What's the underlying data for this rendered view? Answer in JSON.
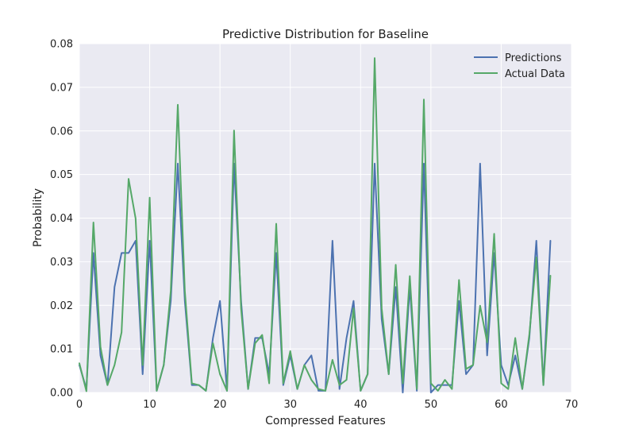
{
  "chart_data": {
    "type": "line",
    "title": "Predictive Distribution for Baseline",
    "xlabel": "Compressed Features",
    "ylabel": "Probability",
    "xlim": [
      0,
      70
    ],
    "ylim": [
      0,
      0.08
    ],
    "xticks": [
      "0",
      "10",
      "20",
      "30",
      "40",
      "50",
      "60",
      "70"
    ],
    "yticks": [
      "0.00",
      "0.01",
      "0.02",
      "0.03",
      "0.04",
      "0.05",
      "0.06",
      "0.07",
      "0.08"
    ],
    "grid": true,
    "legend_position": "top-right",
    "x": [
      0,
      1,
      2,
      3,
      4,
      5,
      6,
      7,
      8,
      9,
      10,
      11,
      12,
      13,
      14,
      15,
      16,
      17,
      18,
      19,
      20,
      21,
      22,
      23,
      24,
      25,
      26,
      27,
      28,
      29,
      30,
      31,
      32,
      33,
      34,
      35,
      36,
      37,
      38,
      39,
      40,
      41,
      42,
      43,
      44,
      45,
      46,
      47,
      48,
      49,
      50,
      51,
      52,
      53,
      54,
      55,
      56,
      57,
      58,
      59,
      60,
      61,
      62,
      63,
      64,
      65,
      66,
      67
    ],
    "series": [
      {
        "name": "Predictions",
        "color": "#4c72b0",
        "values": [
          0.0063,
          0.0008,
          0.032,
          0.0085,
          0.0017,
          0.0242,
          0.032,
          0.032,
          0.0348,
          0.0042,
          0.0348,
          0.0004,
          0.0063,
          0.021,
          0.0525,
          0.021,
          0.0017,
          0.0017,
          0.0004,
          0.0125,
          0.021,
          0.0004,
          0.0525,
          0.021,
          0.0008,
          0.0125,
          0.0125,
          0.0042,
          0.032,
          0.0017,
          0.0085,
          0.0008,
          0.0063,
          0.0085,
          0.0004,
          0.0004,
          0.0348,
          0.0008,
          0.0125,
          0.021,
          0.0004,
          0.0042,
          0.0525,
          0.0168,
          0.0042,
          0.0242,
          0.0,
          0.0242,
          0.0004,
          0.0525,
          0.0,
          0.0017,
          0.0017,
          0.0017,
          0.021,
          0.0042,
          0.0063,
          0.0525,
          0.0085,
          0.032,
          0.0063,
          0.0017,
          0.0085,
          0.0008,
          0.0125,
          0.0348,
          0.0017,
          0.0348
        ]
      },
      {
        "name": "Actual Data",
        "color": "#55a868",
        "values": [
          0.0067,
          0.0003,
          0.039,
          0.0105,
          0.0017,
          0.0063,
          0.0138,
          0.049,
          0.0399,
          0.0063,
          0.0447,
          0.0004,
          0.0063,
          0.0233,
          0.066,
          0.0233,
          0.0021,
          0.0017,
          0.0004,
          0.0113,
          0.0042,
          0.0004,
          0.0601,
          0.0193,
          0.0008,
          0.0113,
          0.0132,
          0.0021,
          0.0387,
          0.0021,
          0.0095,
          0.0008,
          0.0063,
          0.0029,
          0.0008,
          0.0004,
          0.0075,
          0.0017,
          0.0029,
          0.0193,
          0.0004,
          0.0042,
          0.0767,
          0.0193,
          0.0042,
          0.0293,
          0.0021,
          0.0267,
          0.0008,
          0.0672,
          0.0021,
          0.0004,
          0.0029,
          0.0008,
          0.0258,
          0.0054,
          0.0063,
          0.0199,
          0.0115,
          0.0364,
          0.0021,
          0.0008,
          0.0125,
          0.0008,
          0.0133,
          0.031,
          0.0017,
          0.0268
        ]
      }
    ]
  }
}
